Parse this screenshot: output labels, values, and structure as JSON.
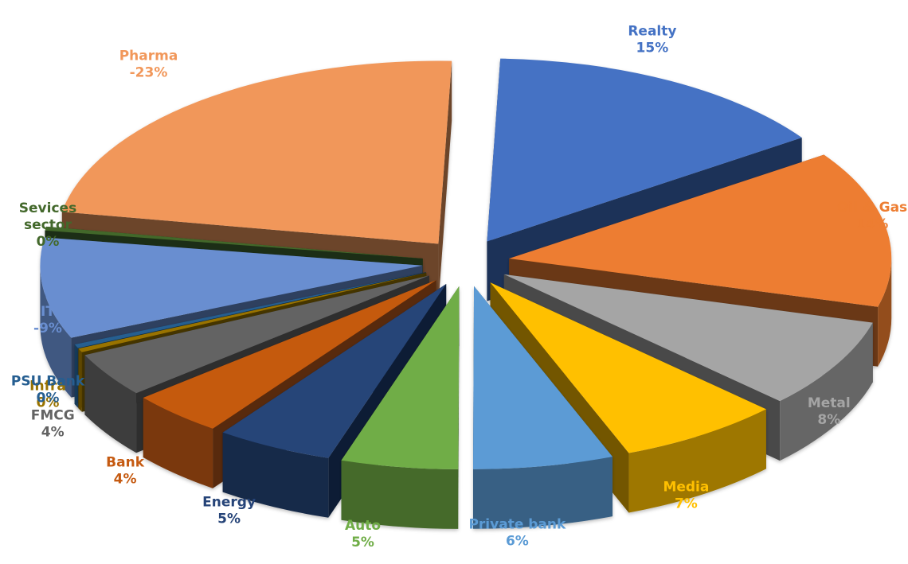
{
  "chart_data": {
    "type": "pie",
    "style": "3d-exploded",
    "slices": [
      {
        "name": "Realty",
        "value_label": "15%",
        "value": 15,
        "color": "#4472C4"
      },
      {
        "name": "Oil & Gas",
        "value_label": "14%",
        "value": 14,
        "color": "#ED7D31"
      },
      {
        "name": "Metal",
        "value_label": "8%",
        "value": 8,
        "color": "#A5A5A5"
      },
      {
        "name": "Media",
        "value_label": "7%",
        "value": 7,
        "color": "#FFC000"
      },
      {
        "name": "Private bank",
        "value_label": "6%",
        "value": 6,
        "color": "#5B9BD5"
      },
      {
        "name": "Auto",
        "value_label": "5%",
        "value": 5,
        "color": "#70AD47"
      },
      {
        "name": "Energy",
        "value_label": "5%",
        "value": 5,
        "color": "#264478"
      },
      {
        "name": "Bank",
        "value_label": "4%",
        "value": 4,
        "color": "#C55A11"
      },
      {
        "name": "FMCG",
        "value_label": "4%",
        "value": 4,
        "color": "#636363"
      },
      {
        "name": "Infra",
        "value_label": "0%",
        "value": 0,
        "color": "#997300"
      },
      {
        "name": "PSU Bank",
        "value_label": "0%",
        "value": 0,
        "color": "#255E91"
      },
      {
        "name": "IT",
        "value_label": "-9%",
        "value": -9,
        "color": "#698ED0"
      },
      {
        "name": "Sevices sector",
        "value_label": "0%",
        "value": 0,
        "color": "#43682B"
      },
      {
        "name": "Pharma",
        "value_label": "-23%",
        "value": -23,
        "color": "#F1975A"
      }
    ]
  }
}
